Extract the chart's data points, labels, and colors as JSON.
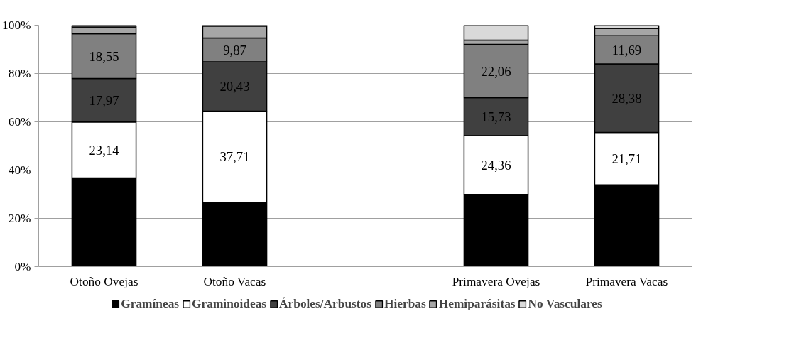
{
  "chart_data": {
    "type": "bar",
    "stacked": true,
    "categories": [
      "Otoño Ovejas",
      "Otoño Vacas",
      null,
      "Primavera Ovejas",
      "Primavera Vacas"
    ],
    "series": [
      {
        "name": "Gramíneas",
        "color": "#000000",
        "values": [
          36.8,
          26.7,
          null,
          29.9,
          33.9
        ]
      },
      {
        "name": "Graminoideas",
        "color": "#ffffff",
        "values": [
          23.14,
          37.71,
          null,
          24.36,
          21.71
        ],
        "value_labels": [
          "23,14",
          "37,71",
          null,
          "24,36",
          "21,71"
        ]
      },
      {
        "name": "Árboles/Arbustos",
        "color": "#404040",
        "values": [
          17.97,
          20.43,
          null,
          15.73,
          28.38
        ],
        "value_labels": [
          "17,97",
          "20,43",
          null,
          "15,73",
          "28,38"
        ]
      },
      {
        "name": "Hierbas",
        "color": "#808080",
        "values": [
          18.55,
          9.87,
          null,
          22.06,
          11.69
        ],
        "value_labels": [
          "18,55",
          "9,87",
          null,
          "22,06",
          "11,69"
        ]
      },
      {
        "name": "Hemiparásitas",
        "color": "#a6a6a6",
        "values": [
          2.8,
          4.9,
          null,
          1.8,
          3.0
        ]
      },
      {
        "name": "No Vasculares",
        "color": "#d9d9d9",
        "values": [
          0.7,
          0.4,
          null,
          6.1,
          1.3
        ]
      }
    ],
    "ylim": [
      0,
      100
    ],
    "yticks": [
      {
        "value": 0,
        "label": "0%"
      },
      {
        "value": 20,
        "label": "20%"
      },
      {
        "value": 40,
        "label": "40%"
      },
      {
        "value": 60,
        "label": "60%"
      },
      {
        "value": 80,
        "label": "80%"
      },
      {
        "value": 100,
        "label": "100%"
      }
    ],
    "grid": "y",
    "legend": "bottom"
  }
}
